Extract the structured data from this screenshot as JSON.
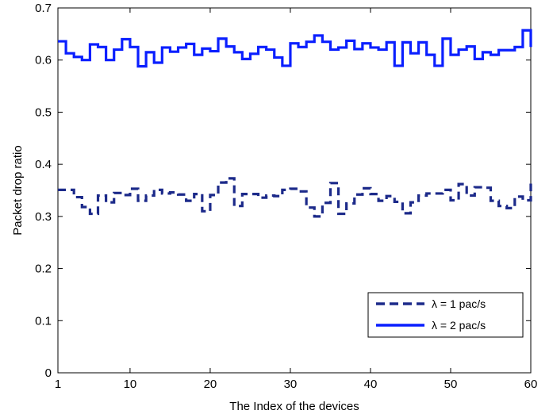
{
  "chart_data": {
    "type": "line",
    "line_style": "steps",
    "xlabel": "The Index of the devices",
    "ylabel": "Packet drop ratio",
    "xlim": [
      1,
      60
    ],
    "ylim": [
      0,
      0.7
    ],
    "xticks": [
      1,
      10,
      20,
      30,
      40,
      50,
      60
    ],
    "xtick_labels": [
      "1",
      "10",
      "20",
      "30",
      "40",
      "50",
      "60"
    ],
    "yticks": [
      0,
      0.1,
      0.2,
      0.3,
      0.4,
      0.5,
      0.6,
      0.7
    ],
    "ytick_labels": [
      "0",
      "0.1",
      "0.2",
      "0.3",
      "0.4",
      "0.5",
      "0.6",
      "0.7"
    ],
    "grid": false,
    "legend_position": "bottom-right",
    "x": [
      1,
      2,
      3,
      4,
      5,
      6,
      7,
      8,
      9,
      10,
      11,
      12,
      13,
      14,
      15,
      16,
      17,
      18,
      19,
      20,
      21,
      22,
      23,
      24,
      25,
      26,
      27,
      28,
      29,
      30,
      31,
      32,
      33,
      34,
      35,
      36,
      37,
      38,
      39,
      40,
      41,
      42,
      43,
      44,
      45,
      46,
      47,
      48,
      49,
      50,
      51,
      52,
      53,
      54,
      55,
      56,
      57,
      58,
      59,
      60
    ],
    "series": [
      {
        "name": "λ = 1 pac/s",
        "color": "#1c2a8a",
        "dash": "dashed",
        "values": [
          0.351,
          0.351,
          0.337,
          0.318,
          0.305,
          0.34,
          0.327,
          0.345,
          0.341,
          0.353,
          0.33,
          0.34,
          0.351,
          0.344,
          0.346,
          0.342,
          0.33,
          0.343,
          0.31,
          0.341,
          0.365,
          0.373,
          0.32,
          0.343,
          0.343,
          0.336,
          0.34,
          0.339,
          0.351,
          0.353,
          0.348,
          0.317,
          0.3,
          0.326,
          0.364,
          0.305,
          0.325,
          0.342,
          0.354,
          0.343,
          0.33,
          0.339,
          0.328,
          0.306,
          0.327,
          0.34,
          0.344,
          0.344,
          0.351,
          0.331,
          0.362,
          0.34,
          0.356,
          0.355,
          0.33,
          0.32,
          0.316,
          0.338,
          0.331,
          0.363
        ]
      },
      {
        "name": "λ = 2 pac/s",
        "color": "#0a1fff",
        "dash": "solid",
        "values": [
          0.636,
          0.613,
          0.606,
          0.6,
          0.63,
          0.625,
          0.6,
          0.62,
          0.64,
          0.625,
          0.588,
          0.615,
          0.595,
          0.624,
          0.616,
          0.624,
          0.631,
          0.61,
          0.622,
          0.617,
          0.641,
          0.626,
          0.615,
          0.602,
          0.612,
          0.625,
          0.62,
          0.605,
          0.589,
          0.632,
          0.625,
          0.635,
          0.647,
          0.635,
          0.62,
          0.624,
          0.637,
          0.621,
          0.632,
          0.624,
          0.62,
          0.634,
          0.589,
          0.634,
          0.613,
          0.634,
          0.61,
          0.589,
          0.641,
          0.61,
          0.62,
          0.626,
          0.602,
          0.615,
          0.61,
          0.619,
          0.619,
          0.625,
          0.657,
          0.625
        ]
      }
    ]
  }
}
